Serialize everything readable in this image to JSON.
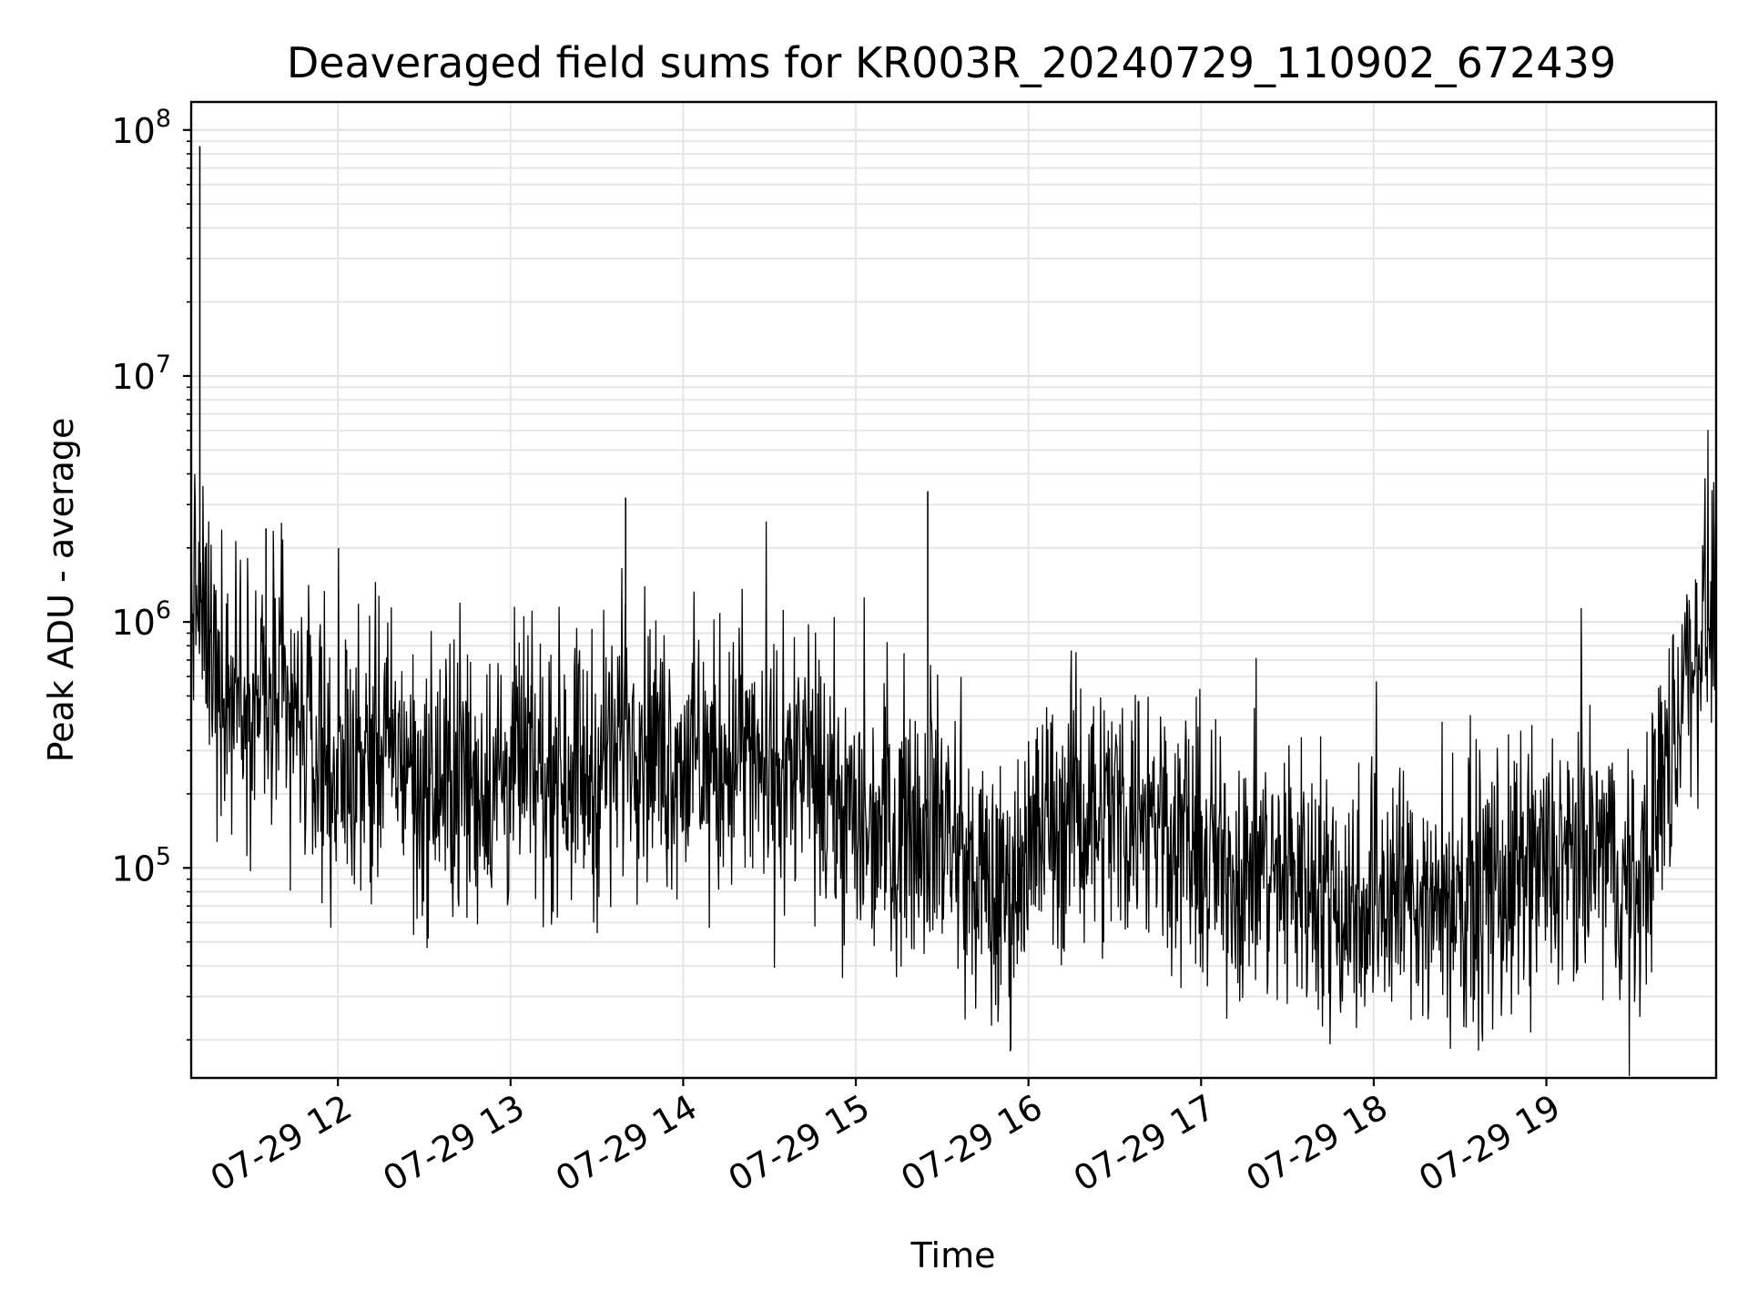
{
  "chart_data": {
    "type": "line",
    "title": "Deaveraged field sums for KR003R_20240729_110902_672439",
    "xlabel": "Time",
    "ylabel": "Peak ADU - average",
    "x_scale": "time",
    "y_scale": "log",
    "xlim": [
      "2024-07-29 11:09",
      "2024-07-29 19:59"
    ],
    "ylim": [
      14000,
      130000000
    ],
    "grid": true,
    "line_color": "#000000",
    "x_ticks": [
      "07-29 12",
      "07-29 13",
      "07-29 14",
      "07-29 15",
      "07-29 16",
      "07-29 17",
      "07-29 18",
      "07-29 19"
    ],
    "y_ticks": [
      {
        "base": "10",
        "exp": "5",
        "value": 100000
      },
      {
        "base": "10",
        "exp": "6",
        "value": 1000000
      },
      {
        "base": "10",
        "exp": "7",
        "value": 10000000
      },
      {
        "base": "10",
        "exp": "8",
        "value": 100000000
      }
    ],
    "series": [
      {
        "x": [
          "2024-07-29 11:09",
          "2024-07-29 11:15",
          "2024-07-29 11:20",
          "2024-07-29 11:25",
          "2024-07-29 11:30",
          "2024-07-29 11:40",
          "2024-07-29 11:50",
          "2024-07-29 12:00",
          "2024-07-29 12:10",
          "2024-07-29 12:20",
          "2024-07-29 12:30",
          "2024-07-29 12:40",
          "2024-07-29 12:50",
          "2024-07-29 13:00",
          "2024-07-29 13:10",
          "2024-07-29 13:20",
          "2024-07-29 13:30",
          "2024-07-29 13:40",
          "2024-07-29 13:50",
          "2024-07-29 14:00",
          "2024-07-29 14:10",
          "2024-07-29 14:20",
          "2024-07-29 14:30",
          "2024-07-29 14:40",
          "2024-07-29 14:50",
          "2024-07-29 15:00",
          "2024-07-29 15:10",
          "2024-07-29 15:20",
          "2024-07-29 15:30",
          "2024-07-29 15:40",
          "2024-07-29 15:50",
          "2024-07-29 16:00",
          "2024-07-29 16:10",
          "2024-07-29 16:20",
          "2024-07-29 16:30",
          "2024-07-29 16:40",
          "2024-07-29 16:50",
          "2024-07-29 17:00",
          "2024-07-29 17:10",
          "2024-07-29 17:20",
          "2024-07-29 17:30",
          "2024-07-29 17:40",
          "2024-07-29 17:50",
          "2024-07-29 18:00",
          "2024-07-29 18:10",
          "2024-07-29 18:20",
          "2024-07-29 18:30",
          "2024-07-29 18:40",
          "2024-07-29 18:50",
          "2024-07-29 19:00",
          "2024-07-29 19:10",
          "2024-07-29 19:20",
          "2024-07-29 19:30",
          "2024-07-29 19:40",
          "2024-07-29 19:50",
          "2024-07-29 19:59"
        ],
        "y": [
          1500000,
          800000,
          600000,
          550000,
          500000,
          420000,
          350000,
          250000,
          300000,
          300000,
          200000,
          220000,
          220000,
          250000,
          240000,
          280000,
          230000,
          400000,
          300000,
          280000,
          250000,
          300000,
          220000,
          250000,
          200000,
          150000,
          150000,
          160000,
          160000,
          90000,
          70000,
          120000,
          160000,
          180000,
          170000,
          180000,
          150000,
          110000,
          100000,
          100000,
          90000,
          90000,
          70000,
          80000,
          80000,
          70000,
          75000,
          80000,
          85000,
          100000,
          100000,
          120000,
          70000,
          200000,
          700000,
          1500000
        ]
      }
    ]
  }
}
